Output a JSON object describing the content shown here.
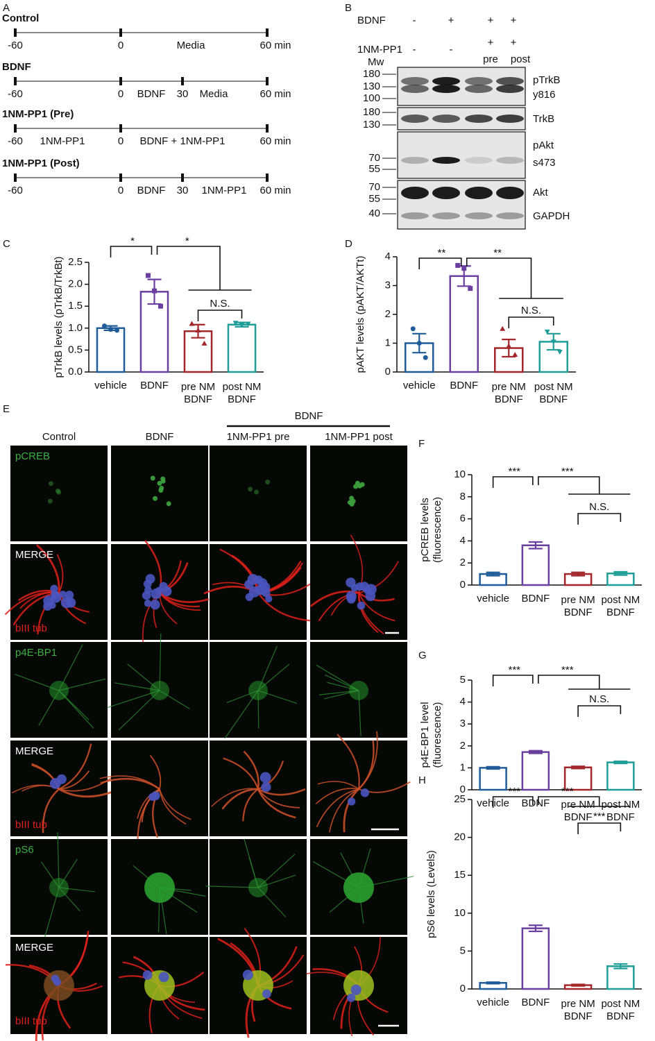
{
  "panels": {
    "timelines": {
      "label": "A",
      "rows": [
        {
          "title": "Control",
          "labels": [
            "-60",
            "0",
            "Media",
            "60 min"
          ]
        },
        {
          "title": "BDNF",
          "labels": [
            "-60",
            "0",
            "BDNF",
            "30",
            "Media",
            "60 min"
          ]
        },
        {
          "title": "1NM-PP1 (Pre)",
          "labels": [
            "-60",
            "1NM-PP1",
            "0",
            "BDNF + 1NM-PP1",
            "60 min"
          ]
        },
        {
          "title": "1NM-PP1 (Post)",
          "labels": [
            "-60",
            "0",
            "BDNF",
            "30",
            "1NM-PP1",
            "60 min"
          ]
        }
      ]
    },
    "blot": {
      "label": "B",
      "rows": [
        {
          "name": "BDNF",
          "cells": [
            "-",
            "+",
            "+",
            "+"
          ]
        },
        {
          "name": "1NM-PP1",
          "cells": [
            "-",
            "-",
            "+",
            "+"
          ]
        }
      ],
      "conditions": [
        "pre",
        "post"
      ],
      "mw_header": "Mw",
      "markers": [
        "180",
        "130",
        "100",
        "180",
        "130",
        "70",
        "55",
        "70",
        "55",
        "40"
      ],
      "targets": [
        "pTrkB",
        "y816",
        "TrkB",
        "pAkt",
        "s473",
        "Akt",
        "GAPDH"
      ]
    },
    "micrographs": {
      "label": "E",
      "group": "BDNF",
      "columns": [
        "Control",
        "BDNF",
        "1NM-PP1 pre",
        "1NM-PP1 post"
      ],
      "rows": [
        {
          "stain": "pCREB"
        },
        {
          "stain": "MERGE",
          "counterstain": "bIII tub"
        },
        {
          "stain": "p4E-BP1"
        },
        {
          "stain": "MERGE",
          "counterstain": "bIII tub"
        },
        {
          "stain": "pS6"
        },
        {
          "stain": "MERGE",
          "counterstain": "bIII tub"
        }
      ]
    }
  },
  "chart_data": [
    {
      "type": "bar",
      "label": "C",
      "ylabel": "pTrkB levels (pTrkB/TrkBt)",
      "categories": [
        "vehicle",
        "BDNF",
        "pre NM\nBDNF",
        "post NM\nBDNF"
      ],
      "colors": [
        "#1f5c99",
        "#6b3fa0",
        "#a3262a",
        "#1f9e98"
      ],
      "values": [
        1.0,
        1.83,
        0.93,
        1.08
      ],
      "errors": [
        0.05,
        0.28,
        0.15,
        0.05
      ],
      "points": [
        [
          1.05,
          0.97,
          0.95
        ],
        [
          2.2,
          1.85,
          1.5
        ],
        [
          1.1,
          0.95,
          0.65
        ],
        [
          1.12,
          1.07,
          1.1
        ]
      ],
      "ylim": [
        0,
        2.5
      ],
      "yticks": [
        {
          "value": 0,
          "label": "0.0"
        },
        0.5,
        {
          "value": 1,
          "label": "1.0"
        },
        1.5,
        {
          "value": 2,
          "label": "2.0"
        },
        2.5
      ],
      "annotations": [
        "*",
        "*",
        "N.S."
      ]
    },
    {
      "type": "bar",
      "label": "D",
      "ylabel": "pAKT levels (pAKT/AKTt)",
      "categories": [
        "vehicle",
        "BDNF",
        "pre NM\nBDNF",
        "post NM\nBDNF"
      ],
      "colors": [
        "#1f5c99",
        "#6b3fa0",
        "#a3262a",
        "#1f9e98"
      ],
      "values": [
        1.0,
        3.33,
        0.83,
        1.05
      ],
      "errors": [
        0.33,
        0.35,
        0.3,
        0.28
      ],
      "points": [
        [
          1.5,
          1.0,
          0.5
        ],
        [
          3.7,
          3.6,
          2.9
        ],
        [
          1.5,
          0.9,
          0.6
        ],
        [
          1.4,
          1.05,
          0.7
        ]
      ],
      "ylim": [
        0,
        4
      ],
      "yticks": [
        0,
        1,
        2,
        3,
        4
      ],
      "annotations": [
        "**",
        "**",
        "N.S."
      ]
    },
    {
      "type": "bar",
      "label": "F",
      "ylabel": "pCREB levels\n(fluorescence)",
      "categories": [
        "vehicle",
        "BDNF",
        "pre NM\nBDNF",
        "post NM\nBDNF"
      ],
      "colors": [
        "#1f5c99",
        "#6b3fa0",
        "#a3262a",
        "#1f9e98"
      ],
      "values": [
        1.0,
        3.6,
        1.0,
        1.05
      ],
      "errors": [
        0.15,
        0.3,
        0.15,
        0.15
      ],
      "ylim": [
        0,
        10
      ],
      "yticks": [
        0,
        2,
        4,
        6,
        8,
        10
      ],
      "annotations": [
        "***",
        "***",
        "N.S."
      ]
    },
    {
      "type": "bar",
      "label": "G",
      "ylabel": "p4E-BP1 level\n(fluorescence)",
      "categories": [
        "vehicle",
        "BDNF",
        "pre NM\nBDNF",
        "post NM\nBDNF"
      ],
      "colors": [
        "#1f5c99",
        "#6b3fa0",
        "#a3262a",
        "#1f9e98"
      ],
      "values": [
        1.0,
        1.72,
        1.02,
        1.25
      ],
      "errors": [
        0.05,
        0.06,
        0.05,
        0.05
      ],
      "ylim": [
        0,
        5
      ],
      "yticks": [
        0,
        1,
        2,
        3,
        4,
        5
      ],
      "annotations": [
        "***",
        "***",
        "N.S."
      ]
    },
    {
      "type": "bar",
      "label": "H",
      "ylabel": "pS6 levels  (Levels)",
      "categories": [
        "vehicle",
        "BDNF",
        "pre NM\nBDNF",
        "post NM\nBDNF"
      ],
      "colors": [
        "#1f5c99",
        "#6b3fa0",
        "#a3262a",
        "#1f9e98"
      ],
      "values": [
        0.8,
        8.0,
        0.5,
        3.0
      ],
      "errors": [
        0.1,
        0.4,
        0.1,
        0.3
      ],
      "ylim": [
        0,
        25
      ],
      "yticks": [
        0,
        5,
        10,
        15,
        20,
        25
      ],
      "annotations": [
        "***",
        "***",
        "***"
      ]
    }
  ]
}
